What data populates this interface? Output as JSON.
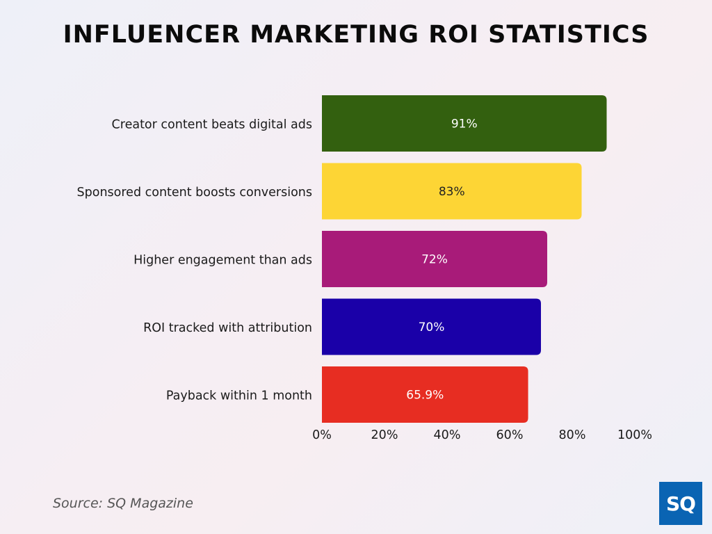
{
  "chart_data": {
    "type": "bar",
    "orientation": "horizontal",
    "title": "INFLUENCER MARKETING ROI STATISTICS",
    "categories": [
      "Creator content beats digital ads",
      "Sponsored content boosts conversions",
      "Higher engagement than ads",
      "ROI tracked with attribution",
      "Payback within 1 month"
    ],
    "values": [
      91,
      83,
      72,
      70,
      65.9
    ],
    "value_labels": [
      "91%",
      "83%",
      "72%",
      "70%",
      "65.9%"
    ],
    "colors": [
      "#33600f",
      "#fdd535",
      "#a81b79",
      "#1a00a8",
      "#e72d22"
    ],
    "label_colors": [
      "#ffffff",
      "#222222",
      "#ffffff",
      "#ffffff",
      "#ffffff"
    ],
    "xlim": [
      0,
      100
    ],
    "xticks": [
      0,
      20,
      40,
      60,
      80,
      100
    ],
    "xtick_labels": [
      "0%",
      "20%",
      "40%",
      "60%",
      "80%",
      "100%"
    ],
    "grid": false,
    "legend": "none"
  },
  "footer": {
    "source": "Source: SQ Magazine",
    "logo_text": "SQ",
    "logo_color": "#0a64b3"
  }
}
